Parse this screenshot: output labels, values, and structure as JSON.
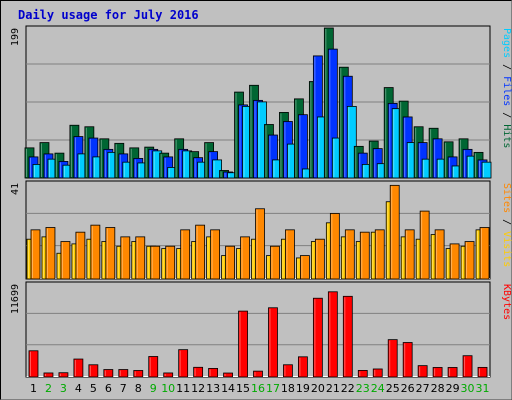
{
  "chart_data": {
    "type": "bar",
    "title": "Daily usage for July 2016",
    "x": [
      1,
      2,
      3,
      4,
      5,
      6,
      7,
      8,
      9,
      10,
      11,
      12,
      13,
      14,
      15,
      16,
      17,
      18,
      19,
      20,
      21,
      22,
      23,
      24,
      25,
      26,
      27,
      28,
      29,
      30,
      31
    ],
    "weekend_days": [
      2,
      3,
      9,
      10,
      16,
      17,
      23,
      24,
      30,
      31
    ],
    "panels": [
      {
        "id": "top",
        "ymax_label": "199",
        "ymax": 199,
        "right_labels": [
          "Pages",
          "Files",
          "Hits"
        ],
        "series": [
          {
            "name": "Hits",
            "color": "#006633",
            "values": [
              40,
              47,
              33,
              70,
              68,
              52,
              46,
              40,
              41,
              33,
              52,
              35,
              47,
              10,
              114,
              123,
              71,
              87,
              105,
              128,
              199,
              147,
              42,
              49,
              120,
              102,
              68,
              66,
              48,
              52,
              34
            ]
          },
          {
            "name": "Files",
            "color": "#0033ff",
            "values": [
              28,
              32,
              22,
              55,
              53,
              38,
              32,
              26,
              38,
              28,
              38,
              27,
              35,
              8,
              97,
              103,
              57,
              75,
              84,
              162,
              171,
              135,
              33,
              39,
              99,
              81,
              47,
              52,
              28,
              38,
              24
            ]
          },
          {
            "name": "Pages",
            "color": "#00ccff",
            "values": [
              18,
              25,
              17,
              32,
              28,
              34,
              21,
              20,
              36,
              14,
              36,
              21,
              24,
              7,
              95,
              101,
              24,
              45,
              12,
              81,
              53,
              95,
              18,
              19,
              92,
              47,
              25,
              25,
              16,
              29,
              21
            ]
          }
        ]
      },
      {
        "id": "middle",
        "ymax_label": "41",
        "ymax": 41,
        "right_labels": [
          "Sites",
          "Visits"
        ],
        "series": [
          {
            "name": "Visits",
            "color": "#ffcc00",
            "values": [
              17,
              18,
              11,
              15,
              17,
              16,
              14,
              16,
              14,
              13,
              13,
              16,
              18,
              10,
              13,
              17,
              10,
              17,
              9,
              16,
              24,
              18,
              16,
              20,
              33,
              18,
              17,
              19,
              13,
              14,
              21
            ]
          },
          {
            "name": "Sites",
            "color": "#ff8800",
            "values": [
              21,
              22,
              16,
              20,
              23,
              22,
              18,
              18,
              14,
              14,
              21,
              23,
              21,
              14,
              18,
              30,
              14,
              21,
              10,
              17,
              28,
              21,
              20,
              21,
              40,
              21,
              29,
              21,
              15,
              16,
              22
            ]
          }
        ]
      },
      {
        "id": "bottom",
        "ymax_label": "11699",
        "ymax": 11699,
        "right_labels": [
          "KBytes"
        ],
        "series": [
          {
            "name": "KBytes",
            "color": "#ff0000",
            "values": [
              3300,
              510,
              540,
              2260,
              1540,
              940,
              940,
              820,
              2580,
              510,
              3440,
              1220,
              1080,
              500,
              8290,
              740,
              8710,
              1540,
              2540,
              9910,
              10720,
              10150,
              830,
              1010,
              4700,
              4340,
              1430,
              1200,
              1200,
              2680,
              1210
            ]
          }
        ]
      }
    ]
  }
}
